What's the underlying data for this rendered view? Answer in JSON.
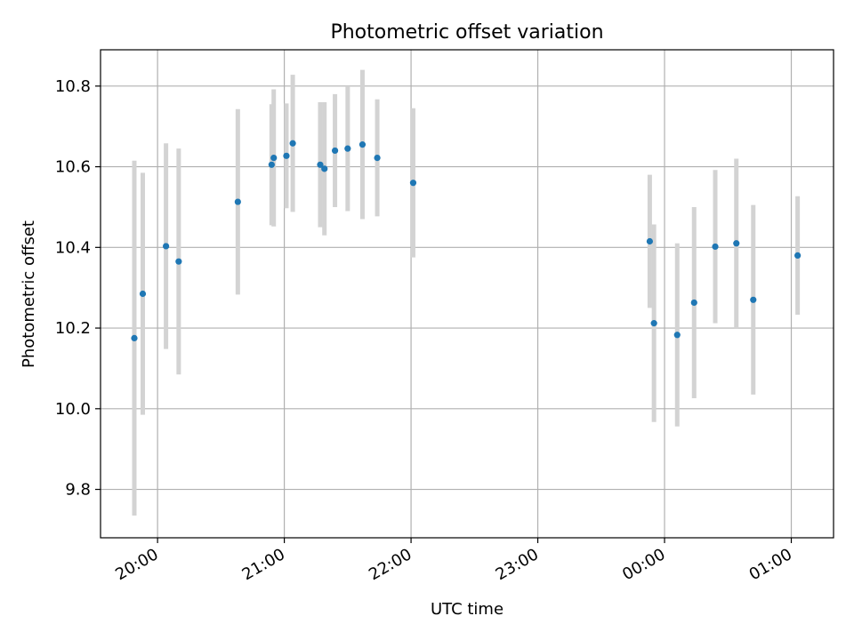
{
  "chart_data": {
    "type": "scatter",
    "title": "Photometric offset variation",
    "xlabel": "UTC time",
    "ylabel": "Photometric offset",
    "x_axis": "time",
    "xlim": [
      "19:33",
      "01:20"
    ],
    "ylim": [
      9.68,
      10.89
    ],
    "x_ticks": [
      "20:00",
      "21:00",
      "22:00",
      "23:00",
      "00:00",
      "01:00"
    ],
    "y_ticks": [
      "9.8",
      "10.0",
      "10.2",
      "10.4",
      "10.6",
      "10.8"
    ],
    "grid": true,
    "colors": {
      "marker": "#1f77b4",
      "errorbar": "#d3d3d3",
      "grid": "#b0b0b0"
    },
    "points": [
      {
        "x": "19:49",
        "y": 10.175,
        "err": 0.44
      },
      {
        "x": "19:53",
        "y": 10.285,
        "err": 0.3
      },
      {
        "x": "20:04",
        "y": 10.403,
        "err": 0.255
      },
      {
        "x": "20:10",
        "y": 10.365,
        "err": 0.28
      },
      {
        "x": "20:38",
        "y": 10.513,
        "err": 0.23
      },
      {
        "x": "20:54",
        "y": 10.605,
        "err": 0.15
      },
      {
        "x": "20:55",
        "y": 10.622,
        "err": 0.17
      },
      {
        "x": "21:01",
        "y": 10.627,
        "err": 0.13
      },
      {
        "x": "21:04",
        "y": 10.658,
        "err": 0.17
      },
      {
        "x": "21:17",
        "y": 10.605,
        "err": 0.155
      },
      {
        "x": "21:19",
        "y": 10.595,
        "err": 0.165
      },
      {
        "x": "21:24",
        "y": 10.64,
        "err": 0.14
      },
      {
        "x": "21:30",
        "y": 10.645,
        "err": 0.155
      },
      {
        "x": "21:37",
        "y": 10.655,
        "err": 0.185
      },
      {
        "x": "21:44",
        "y": 10.622,
        "err": 0.145
      },
      {
        "x": "22:01",
        "y": 10.56,
        "err": 0.185
      },
      {
        "x": "23:53",
        "y": 10.415,
        "err": 0.165
      },
      {
        "x": "23:55",
        "y": 10.212,
        "err": 0.245
      },
      {
        "x": "00:06",
        "y": 10.183,
        "err": 0.227
      },
      {
        "x": "00:14",
        "y": 10.263,
        "err": 0.237
      },
      {
        "x": "00:24",
        "y": 10.402,
        "err": 0.19
      },
      {
        "x": "00:34",
        "y": 10.41,
        "err": 0.21
      },
      {
        "x": "00:42",
        "y": 10.27,
        "err": 0.235
      },
      {
        "x": "01:03",
        "y": 10.38,
        "err": 0.147
      }
    ]
  }
}
